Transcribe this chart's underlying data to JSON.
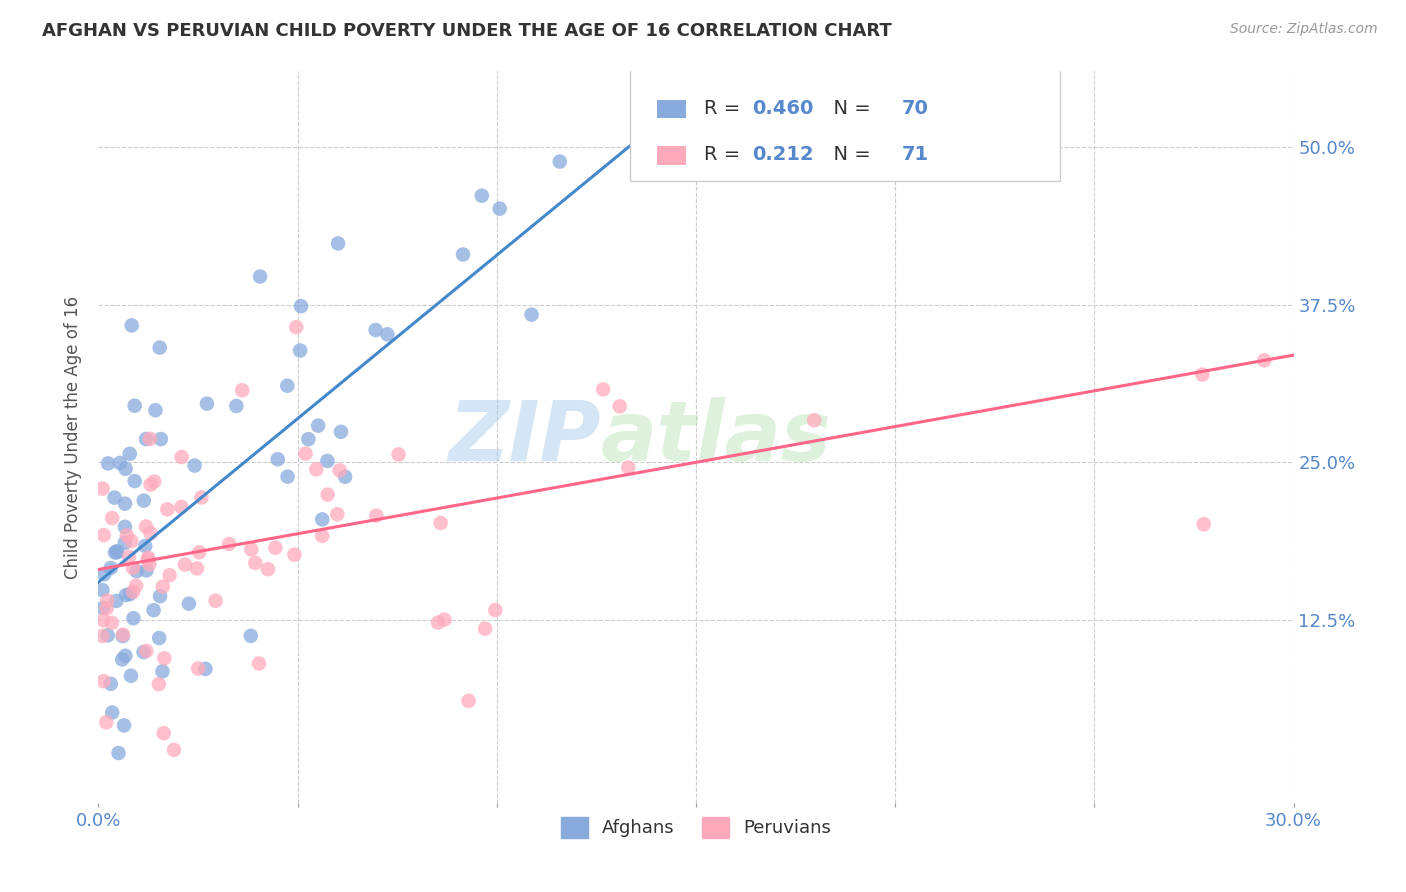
{
  "title": "AFGHAN VS PERUVIAN CHILD POVERTY UNDER THE AGE OF 16 CORRELATION CHART",
  "source": "Source: ZipAtlas.com",
  "ylabel": "Child Poverty Under the Age of 16",
  "ytick_labels": [
    "12.5%",
    "25.0%",
    "37.5%",
    "50.0%"
  ],
  "ytick_vals": [
    0.125,
    0.25,
    0.375,
    0.5
  ],
  "legend_bottom1": "Afghans",
  "legend_bottom2": "Peruvians",
  "color_blue": "#88AADD",
  "color_pink": "#FFAABB",
  "color_blue_line": "#4488CC",
  "color_pink_line": "#FF6688",
  "color_axis_text": "#5588CC",
  "watermark_color": "#AACCEE",
  "R_afghan": 0.46,
  "N_afghan": 70,
  "R_peruvian": 0.212,
  "N_peruvian": 71,
  "afghan_line_x": [
    0.0,
    0.135
  ],
  "afghan_line_y": [
    0.155,
    0.505
  ],
  "peruvian_line_x": [
    0.0,
    0.3
  ],
  "peruvian_line_y": [
    0.165,
    0.335
  ],
  "xlim": [
    0.0,
    0.3
  ],
  "ylim": [
    -0.02,
    0.56
  ],
  "background_color": "#FFFFFF",
  "grid_color": "#CCCCCC"
}
